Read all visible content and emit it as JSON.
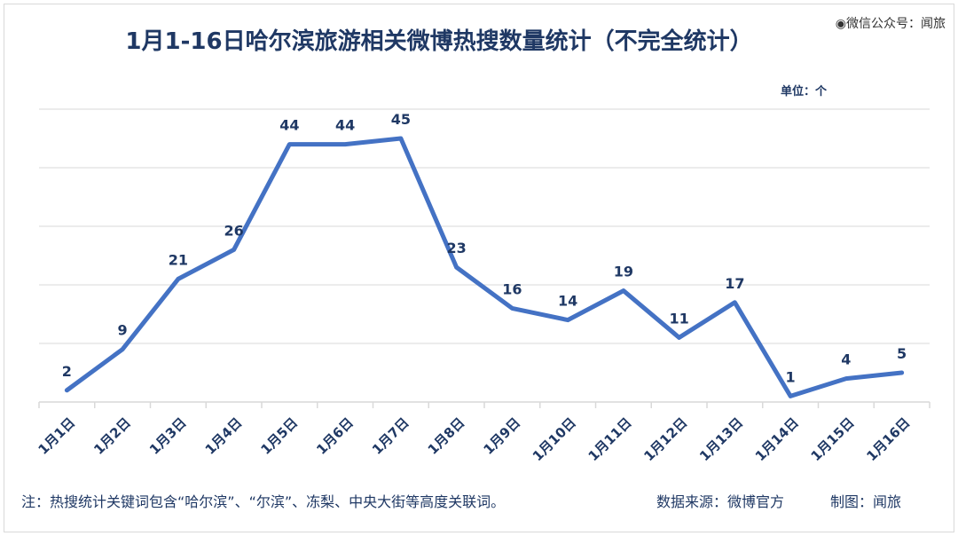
{
  "title": "1月1-16日哈尔滨旅游相关微博热搜数量统计（不完全统计）",
  "watermark": "微信公众号：闻旅",
  "unit": "单位：个",
  "footnote": "注：热搜统计关键词包含“哈尔滨”、“尔滨”、冻梨、中央大街等高度关联词。",
  "source": "数据来源：微博官方",
  "credit": "制图：闻旅",
  "colors": {
    "line": "#4472c4",
    "text": "#1f3864",
    "grid": "#d9d9d9"
  },
  "chart_data": {
    "type": "line",
    "categories": [
      "1月1日",
      "1月2日",
      "1月3日",
      "1月4日",
      "1月5日",
      "1月6日",
      "1月7日",
      "1月8日",
      "1月9日",
      "1月10日",
      "1月11日",
      "1月12日",
      "1月13日",
      "1月14日",
      "1月15日",
      "1月16日"
    ],
    "series": [
      {
        "values": [
          2,
          9,
          21,
          26,
          44,
          44,
          45,
          23,
          16,
          14,
          19,
          11,
          17,
          1,
          4,
          5
        ]
      }
    ],
    "ylim": [
      0,
      50
    ],
    "grid": true,
    "data_labels": true,
    "legend": "none"
  }
}
